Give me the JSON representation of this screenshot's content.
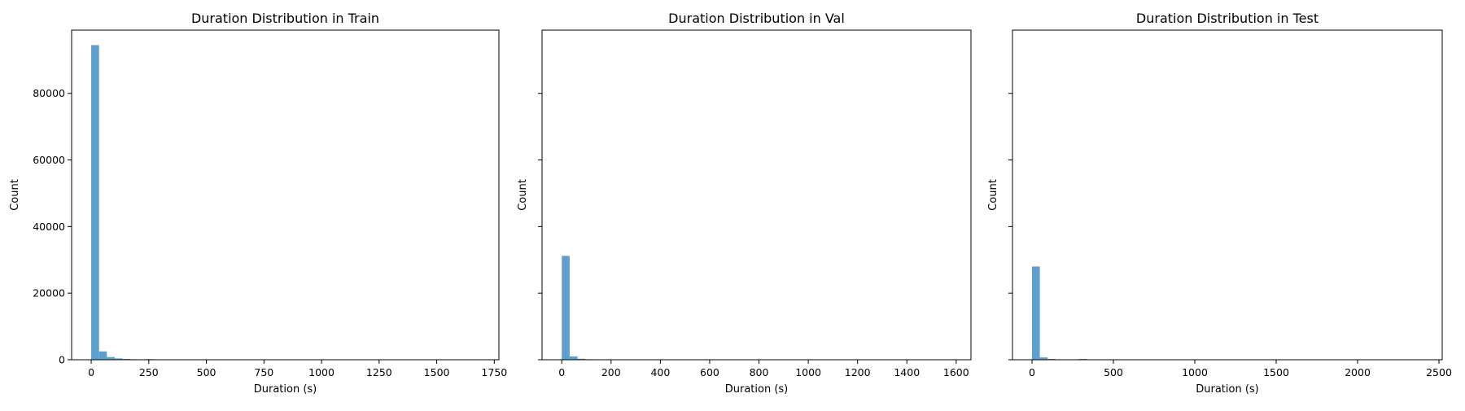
{
  "chart_data": [
    {
      "type": "bar",
      "title": "Duration Distribution in Train",
      "xlabel": "Duration (s)",
      "ylabel": "Count",
      "xlim": [
        -85,
        1770
      ],
      "ylim": [
        0,
        99000
      ],
      "xticks": [
        0,
        250,
        500,
        750,
        1000,
        1250,
        1500,
        1750
      ],
      "yticks": [
        0,
        20000,
        40000,
        60000,
        80000
      ],
      "show_yticklabels": true,
      "bar_color": "#5f9fce",
      "bars": [
        {
          "x0": 0,
          "x1": 34,
          "count": 94500
        },
        {
          "x0": 34,
          "x1": 68,
          "count": 2500
        },
        {
          "x0": 68,
          "x1": 102,
          "count": 800
        },
        {
          "x0": 102,
          "x1": 136,
          "count": 400
        },
        {
          "x0": 136,
          "x1": 170,
          "count": 250
        },
        {
          "x0": 170,
          "x1": 204,
          "count": 150
        },
        {
          "x0": 204,
          "x1": 238,
          "count": 100
        },
        {
          "x0": 238,
          "x1": 272,
          "count": 180
        },
        {
          "x0": 272,
          "x1": 306,
          "count": 60
        }
      ]
    },
    {
      "type": "bar",
      "title": "Duration Distribution in Val",
      "xlabel": "Duration (s)",
      "ylabel": "Count",
      "xlim": [
        -80,
        1660
      ],
      "ylim": [
        0,
        99000
      ],
      "xticks": [
        0,
        200,
        400,
        600,
        800,
        1000,
        1200,
        1400,
        1600
      ],
      "yticks": [
        0,
        20000,
        40000,
        60000,
        80000
      ],
      "show_yticklabels": false,
      "bar_color": "#5f9fce",
      "bars": [
        {
          "x0": 0,
          "x1": 32,
          "count": 31200
        },
        {
          "x0": 32,
          "x1": 64,
          "count": 1000
        },
        {
          "x0": 64,
          "x1": 96,
          "count": 300
        },
        {
          "x0": 96,
          "x1": 128,
          "count": 150
        },
        {
          "x0": 128,
          "x1": 160,
          "count": 100
        },
        {
          "x0": 160,
          "x1": 192,
          "count": 60
        }
      ]
    },
    {
      "type": "bar",
      "title": "Duration Distribution in Test",
      "xlabel": "Duration (s)",
      "ylabel": "Count",
      "xlim": [
        -120,
        2520
      ],
      "ylim": [
        0,
        99000
      ],
      "xticks": [
        0,
        500,
        1000,
        1500,
        2000,
        2500
      ],
      "yticks": [
        0,
        20000,
        40000,
        60000,
        80000
      ],
      "show_yticklabels": false,
      "bar_color": "#5f9fce",
      "bars": [
        {
          "x0": 0,
          "x1": 48,
          "count": 28000
        },
        {
          "x0": 48,
          "x1": 96,
          "count": 700
        },
        {
          "x0": 96,
          "x1": 144,
          "count": 250
        },
        {
          "x0": 144,
          "x1": 192,
          "count": 120
        },
        {
          "x0": 288,
          "x1": 336,
          "count": 250
        }
      ]
    }
  ]
}
